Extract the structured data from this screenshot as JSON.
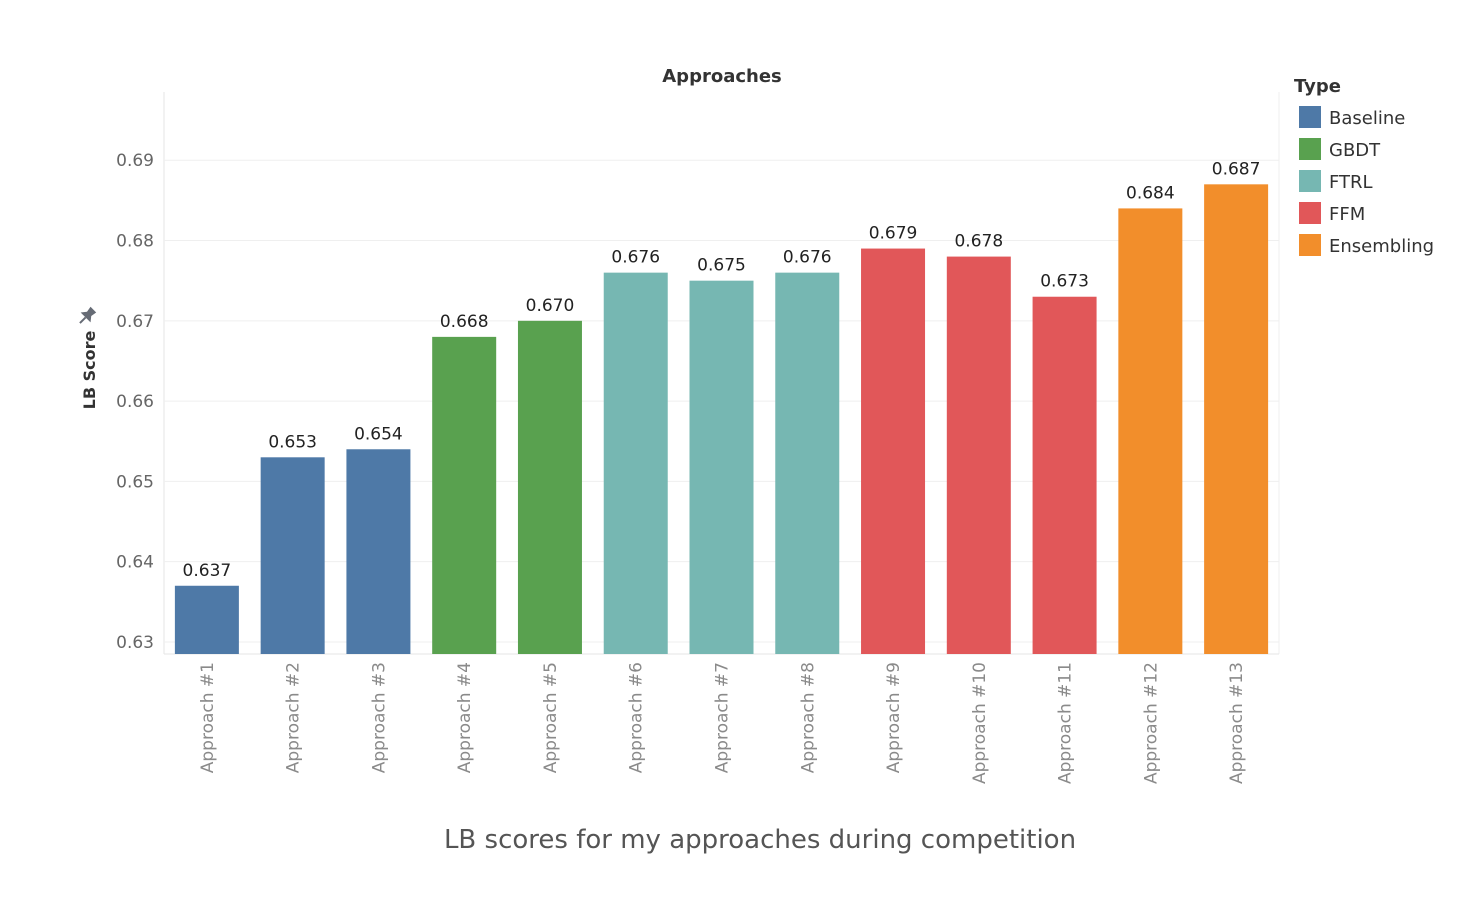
{
  "chart_data": {
    "type": "bar",
    "title": "Approaches",
    "ylabel": "LB Score",
    "xlabel": "",
    "ylim": [
      0.6285,
      0.6985
    ],
    "yticks": [
      0.63,
      0.64,
      0.65,
      0.66,
      0.67,
      0.68,
      0.69
    ],
    "grid": true,
    "legend_position": "right",
    "legend_title": "Type",
    "categories": [
      "Approach #1",
      "Approach #2",
      "Approach #3",
      "Approach #4",
      "Approach #5",
      "Approach #6",
      "Approach #7",
      "Approach #8",
      "Approach #9",
      "Approach #10",
      "Approach #11",
      "Approach #12",
      "Approach #13"
    ],
    "values": [
      0.637,
      0.653,
      0.654,
      0.668,
      0.67,
      0.676,
      0.675,
      0.676,
      0.679,
      0.678,
      0.673,
      0.684,
      0.687
    ],
    "value_labels": [
      "0.637",
      "0.653",
      "0.654",
      "0.668",
      "0.670",
      "0.676",
      "0.675",
      "0.676",
      "0.679",
      "0.678",
      "0.673",
      "0.684",
      "0.687"
    ],
    "types": [
      "Baseline",
      "Baseline",
      "Baseline",
      "GBDT",
      "GBDT",
      "FTRL",
      "FTRL",
      "FTRL",
      "FFM",
      "FFM",
      "FFM",
      "Ensembling",
      "Ensembling"
    ],
    "legend": [
      {
        "name": "Baseline",
        "color": "#4e79a7"
      },
      {
        "name": "GBDT",
        "color": "#59a14f"
      },
      {
        "name": "FTRL",
        "color": "#76b7b2"
      },
      {
        "name": "FFM",
        "color": "#e15759"
      },
      {
        "name": "Ensembling",
        "color": "#f28e2b"
      }
    ],
    "pin_icon": "pin-icon"
  },
  "caption": "LB scores for my approaches during competition"
}
